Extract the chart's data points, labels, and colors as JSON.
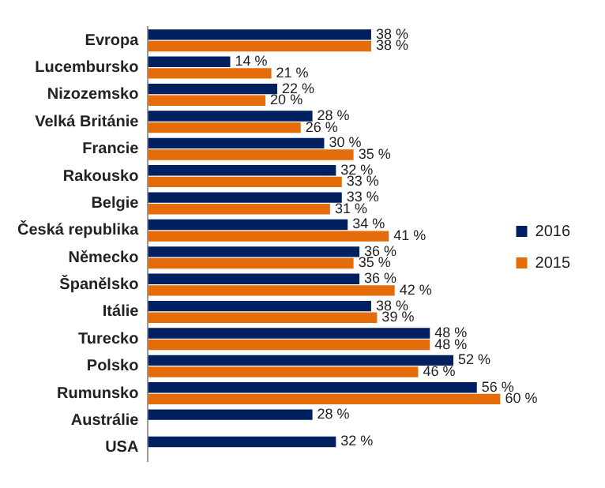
{
  "chart_data": {
    "type": "bar",
    "orientation": "horizontal",
    "legend": "right",
    "grid": false,
    "categories": [
      "Evropa",
      "Lucembursko",
      "Nizozemsko",
      "Velká Británie",
      "Francie",
      "Rakousko",
      "Belgie",
      "Česká republika",
      "Německo",
      "Španělsko",
      "Itálie",
      "Turecko",
      "Polsko",
      "Rumunsko",
      "Austrálie",
      "USA"
    ],
    "series": [
      {
        "name": "2016",
        "color": "#002060",
        "values": [
          38,
          14,
          22,
          28,
          30,
          32,
          33,
          34,
          36,
          36,
          38,
          48,
          52,
          56,
          28,
          32
        ],
        "value_labels": [
          "38 %",
          "14 %",
          "22 %",
          "28 %",
          "30 %",
          "32 %",
          "33 %",
          "34 %",
          "36 %",
          "36 %",
          "38 %",
          "48 %",
          "52 %",
          "56 %",
          "28 %",
          "32 %"
        ]
      },
      {
        "name": "2015",
        "color": "#e46c0a",
        "values": [
          38,
          21,
          20,
          26,
          35,
          33,
          31,
          41,
          35,
          42,
          39,
          48,
          46,
          60,
          null,
          null
        ],
        "value_labels": [
          "38 %",
          "21 %",
          "20 %",
          "26 %",
          "35 %",
          "33 %",
          "31 %",
          "41 %",
          "35 %",
          "42 %",
          "39 %",
          "48 %",
          "46 %",
          "60 %",
          null,
          null
        ]
      }
    ]
  }
}
